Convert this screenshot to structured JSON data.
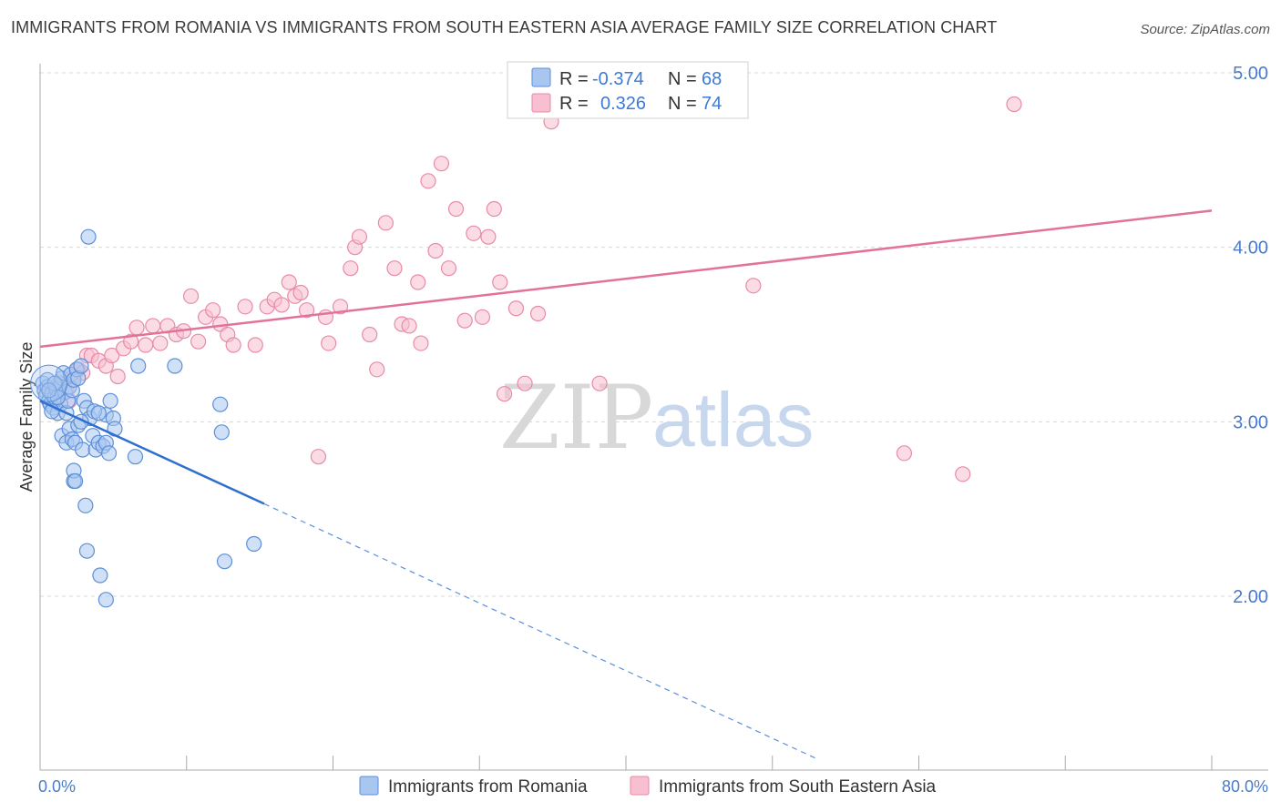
{
  "header": {
    "title": "IMMIGRANTS FROM ROMANIA VS IMMIGRANTS FROM SOUTH EASTERN ASIA AVERAGE FAMILY SIZE CORRELATION CHART",
    "source": "Source: ZipAtlas.com"
  },
  "watermark": {
    "zip": "ZIP",
    "atlas": "atlas"
  },
  "colors": {
    "blue_fill": "#a9c6f0",
    "blue_stroke": "#5b8fd8",
    "blue_line": "#2f6fcf",
    "pink_fill": "#f7bfd0",
    "pink_stroke": "#e88aa8",
    "pink_line": "#e2729a",
    "grid": "#d8d8d8",
    "tick_text": "#4a7cc7"
  },
  "stats": {
    "romania": {
      "r_label": "R =",
      "r_value": "-0.374",
      "n_label": "N =",
      "n_value": "68"
    },
    "sea": {
      "r_label": "R =",
      "r_value": "0.326",
      "n_label": "N =",
      "n_value": "74"
    }
  },
  "chart_data": {
    "type": "scatter",
    "title": "IMMIGRANTS FROM ROMANIA VS IMMIGRANTS FROM SOUTH EASTERN ASIA AVERAGE FAMILY SIZE CORRELATION CHART",
    "xlabel": "",
    "ylabel": "Average Family Size",
    "xlim": [
      0,
      80
    ],
    "ylim": [
      1.0,
      5.2
    ],
    "x_tick_labels": [
      "0.0%",
      "80.0%"
    ],
    "y_ticks": [
      2.0,
      3.0,
      4.0,
      5.0
    ],
    "y_tick_labels": [
      "2.00",
      "3.00",
      "4.00",
      "5.00"
    ],
    "grid": true,
    "legend": [
      "Immigrants from Romania",
      "Immigrants from South Eastern Asia"
    ],
    "series": [
      {
        "name": "Immigrants from Romania",
        "color": "blue",
        "points": [
          [
            0.2,
            3.22
          ],
          [
            0.3,
            3.18
          ],
          [
            0.4,
            3.15
          ],
          [
            0.5,
            3.2
          ],
          [
            0.6,
            3.12
          ],
          [
            0.7,
            3.1
          ],
          [
            0.8,
            3.16
          ],
          [
            0.9,
            3.08
          ],
          [
            1.0,
            3.14
          ],
          [
            1.1,
            3.19
          ],
          [
            1.2,
            3.05
          ],
          [
            1.3,
            3.22
          ],
          [
            1.4,
            3.1
          ],
          [
            1.5,
            3.25
          ],
          [
            1.6,
            3.28
          ],
          [
            1.7,
            3.17
          ],
          [
            1.8,
            3.05
          ],
          [
            1.9,
            3.12
          ],
          [
            2.0,
            3.2
          ],
          [
            2.1,
            3.27
          ],
          [
            2.2,
            3.18
          ],
          [
            2.3,
            3.24
          ],
          [
            2.5,
            3.3
          ],
          [
            2.6,
            3.25
          ],
          [
            2.8,
            3.32
          ],
          [
            3.0,
            3.12
          ],
          [
            3.2,
            3.08
          ],
          [
            3.4,
            3.02
          ],
          [
            1.5,
            2.92
          ],
          [
            1.8,
            2.88
          ],
          [
            2.0,
            2.96
          ],
          [
            2.2,
            2.9
          ],
          [
            2.4,
            2.88
          ],
          [
            2.6,
            2.98
          ],
          [
            2.9,
            2.84
          ],
          [
            3.6,
            2.92
          ],
          [
            3.8,
            2.84
          ],
          [
            4.0,
            2.88
          ],
          [
            4.3,
            2.86
          ],
          [
            4.5,
            2.88
          ],
          [
            4.7,
            2.82
          ],
          [
            4.5,
            3.04
          ],
          [
            4.8,
            3.12
          ],
          [
            5.0,
            3.02
          ],
          [
            5.1,
            2.96
          ],
          [
            2.3,
            2.66
          ],
          [
            2.3,
            2.72
          ],
          [
            2.4,
            2.66
          ],
          [
            3.1,
            2.52
          ],
          [
            3.2,
            2.26
          ],
          [
            4.1,
            2.12
          ],
          [
            4.5,
            1.98
          ],
          [
            3.3,
            4.06
          ],
          [
            6.5,
            2.8
          ],
          [
            6.7,
            3.32
          ],
          [
            9.2,
            3.32
          ],
          [
            12.3,
            3.1
          ],
          [
            12.4,
            2.94
          ],
          [
            12.6,
            2.2
          ],
          [
            14.6,
            2.3
          ],
          [
            0.5,
            3.24
          ],
          [
            1.0,
            3.22
          ],
          [
            0.8,
            3.06
          ],
          [
            3.7,
            3.06
          ],
          [
            4.0,
            3.05
          ],
          [
            2.8,
            3.0
          ],
          [
            1.2,
            3.14
          ],
          [
            0.6,
            3.18
          ]
        ],
        "trend_solid": [
          [
            0.0,
            3.12
          ],
          [
            15.3,
            2.53
          ]
        ],
        "trend_dashed": [
          [
            15.3,
            2.53
          ],
          [
            53.0,
            1.07
          ]
        ]
      },
      {
        "name": "Immigrants from South Eastern Asia",
        "color": "pink",
        "points": [
          [
            1.2,
            3.2
          ],
          [
            1.5,
            3.22
          ],
          [
            1.8,
            3.18
          ],
          [
            2.0,
            3.12
          ],
          [
            2.3,
            3.26
          ],
          [
            2.6,
            3.3
          ],
          [
            2.9,
            3.28
          ],
          [
            3.2,
            3.38
          ],
          [
            3.5,
            3.38
          ],
          [
            4.0,
            3.35
          ],
          [
            4.5,
            3.32
          ],
          [
            4.9,
            3.38
          ],
          [
            5.3,
            3.26
          ],
          [
            5.7,
            3.42
          ],
          [
            6.2,
            3.46
          ],
          [
            6.6,
            3.54
          ],
          [
            7.2,
            3.44
          ],
          [
            7.7,
            3.55
          ],
          [
            8.2,
            3.45
          ],
          [
            8.7,
            3.55
          ],
          [
            9.3,
            3.5
          ],
          [
            9.8,
            3.52
          ],
          [
            10.3,
            3.72
          ],
          [
            10.8,
            3.46
          ],
          [
            11.3,
            3.6
          ],
          [
            11.8,
            3.64
          ],
          [
            12.3,
            3.56
          ],
          [
            12.8,
            3.5
          ],
          [
            13.2,
            3.44
          ],
          [
            14.0,
            3.66
          ],
          [
            14.7,
            3.44
          ],
          [
            15.5,
            3.66
          ],
          [
            16.0,
            3.7
          ],
          [
            16.5,
            3.67
          ],
          [
            17.0,
            3.8
          ],
          [
            17.4,
            3.72
          ],
          [
            17.8,
            3.74
          ],
          [
            18.2,
            3.64
          ],
          [
            19.0,
            2.8
          ],
          [
            19.5,
            3.6
          ],
          [
            19.7,
            3.45
          ],
          [
            20.5,
            3.66
          ],
          [
            21.2,
            3.88
          ],
          [
            21.5,
            4.0
          ],
          [
            21.8,
            4.06
          ],
          [
            22.5,
            3.5
          ],
          [
            23.0,
            3.3
          ],
          [
            23.6,
            4.14
          ],
          [
            24.2,
            3.88
          ],
          [
            24.7,
            3.56
          ],
          [
            25.2,
            3.55
          ],
          [
            25.8,
            3.8
          ],
          [
            26.0,
            3.45
          ],
          [
            26.5,
            4.38
          ],
          [
            27.0,
            3.98
          ],
          [
            27.4,
            4.48
          ],
          [
            27.9,
            3.88
          ],
          [
            28.4,
            4.22
          ],
          [
            29.0,
            3.58
          ],
          [
            29.6,
            4.08
          ],
          [
            30.2,
            3.6
          ],
          [
            30.6,
            4.06
          ],
          [
            31.0,
            4.22
          ],
          [
            31.4,
            3.8
          ],
          [
            31.7,
            3.16
          ],
          [
            32.5,
            3.65
          ],
          [
            33.1,
            3.22
          ],
          [
            34.0,
            3.62
          ],
          [
            34.9,
            4.72
          ],
          [
            38.2,
            3.22
          ],
          [
            48.7,
            3.78
          ],
          [
            59.0,
            2.82
          ],
          [
            63.0,
            2.7
          ],
          [
            66.5,
            4.82
          ]
        ],
        "trend_solid": [
          [
            0.0,
            3.43
          ],
          [
            80.0,
            4.21
          ]
        ]
      }
    ]
  }
}
